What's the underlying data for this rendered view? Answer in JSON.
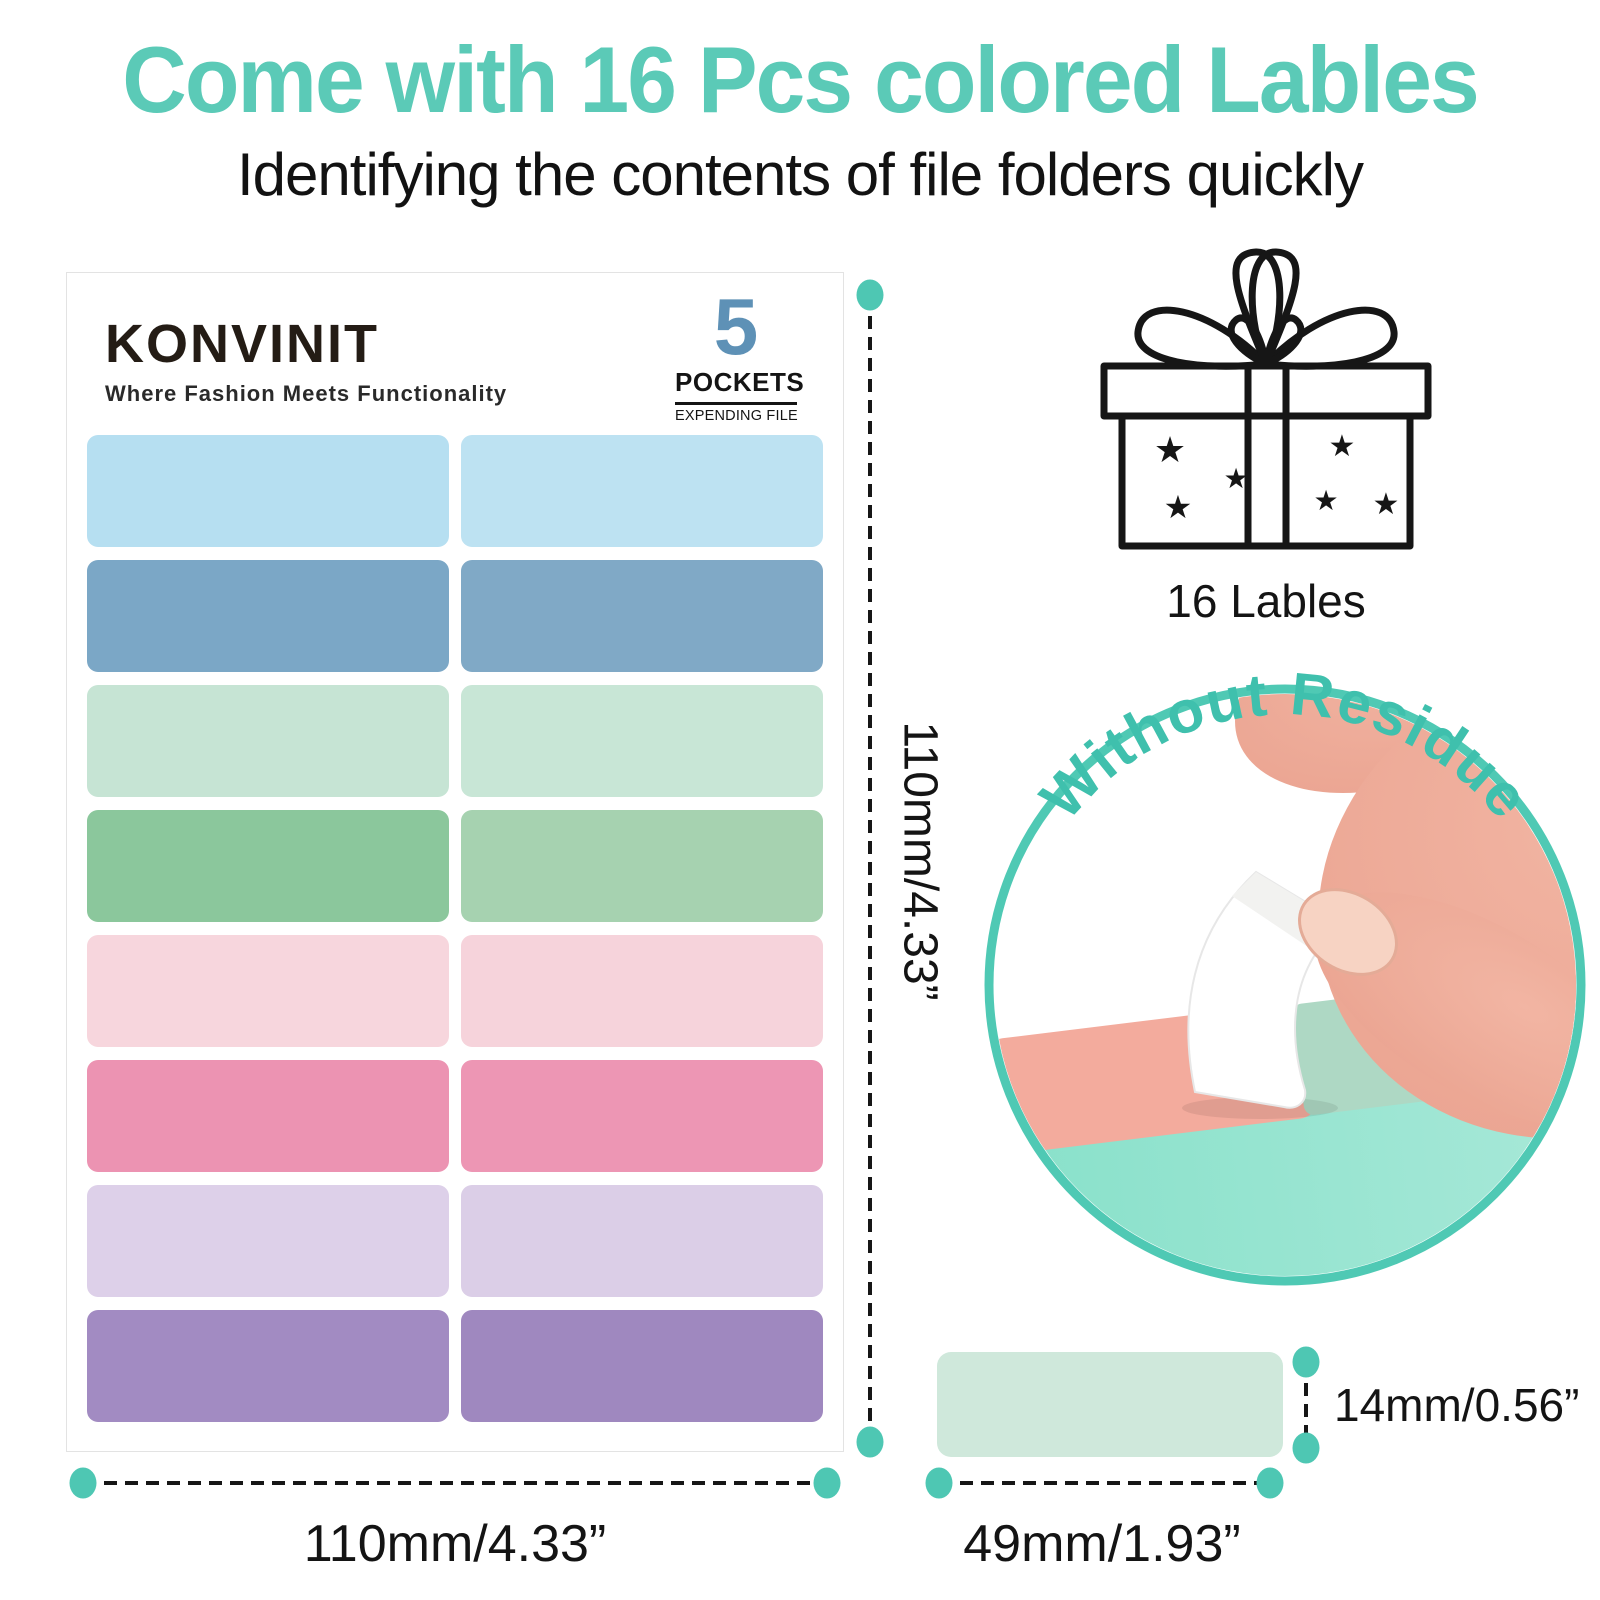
{
  "header": {
    "title": "Come with 16 Pcs colored Lables",
    "subtitle": "Identifying the contents of file folders quickly"
  },
  "card": {
    "brand": "KONVINIT",
    "tagline": "Where Fashion Meets Functionality",
    "pockets": {
      "count": "5",
      "label": "POCKETS",
      "sublabel": "EXPENDING FILE"
    },
    "labels": [
      {
        "name": "light-blue",
        "left": "#b6dff1",
        "right": "#bde2f2"
      },
      {
        "name": "steel-blue",
        "left": "#7ba7c6",
        "right": "#80a9c6"
      },
      {
        "name": "pale-mint",
        "left": "#c6e4d4",
        "right": "#c8e6d6"
      },
      {
        "name": "green",
        "left": "#8bc79c",
        "right": "#a6d2b0"
      },
      {
        "name": "pale-pink",
        "left": "#f7d6dd",
        "right": "#f6d3db"
      },
      {
        "name": "pink",
        "left": "#ec93b2",
        "right": "#ed96b4"
      },
      {
        "name": "lavender",
        "left": "#ddd0e9",
        "right": "#dbcee7"
      },
      {
        "name": "purple",
        "left": "#a28bc2",
        "right": "#9f88bf"
      }
    ]
  },
  "gift": {
    "caption": "16 Lables"
  },
  "badge": {
    "arc_text": "Without Residue"
  },
  "dimensions": {
    "sheet_height": "110mm/4.33”",
    "sheet_width": "110mm/4.33”",
    "label_height": "14mm/0.56”",
    "label_width": "49mm/1.93”"
  },
  "icons": {
    "star": "★"
  },
  "colors": {
    "teal_title": "#5bcab7",
    "teal_ring": "#4fc9b4",
    "teal_arc": "#3fc0ad",
    "teal_dot": "#4ec7b3",
    "blue_number": "#5e91b6",
    "ink": "#161616",
    "card_border": "#e3e3e3",
    "folder_mint": "#82dfc7",
    "folder_mint_light": "#aeeadb",
    "label_salmon": "#f3ab9d",
    "label_reveal": "#aed8c4",
    "peel_white": "#ffffff",
    "skin": "#f2b5a3",
    "skin_deep": "#e9a18e",
    "nail": "#f7d3c3",
    "mini_swatch": "#cfe8db"
  }
}
